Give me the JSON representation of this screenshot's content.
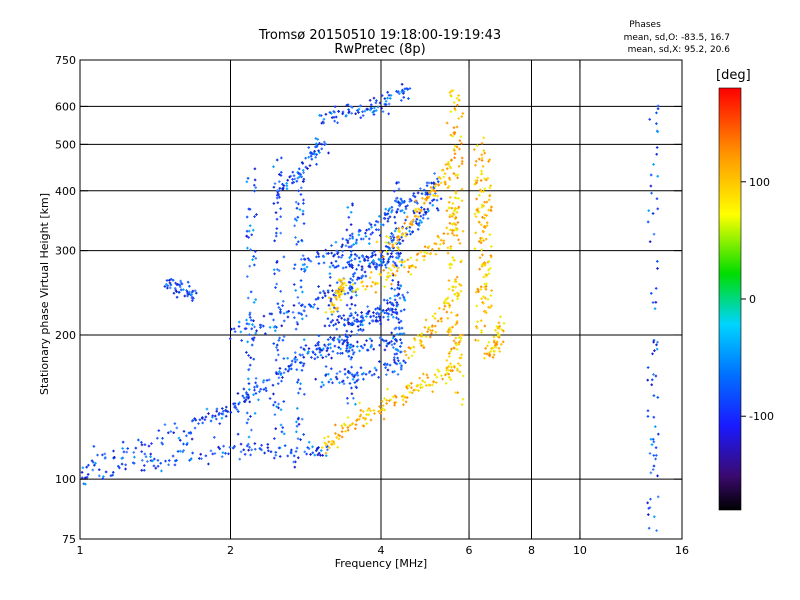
{
  "chart_data": {
    "type": "scatter",
    "title": "Tromsø 20150510 19:18:00-19:19:43",
    "subtitle": "RwPretec (8p)",
    "xlabel": "Frequency [MHz]",
    "ylabel": "Stationary phase Virtual Height [km]",
    "x_scale": "log",
    "y_scale": "log",
    "xlim": [
      1,
      16
    ],
    "ylim": [
      75,
      750
    ],
    "x_ticks": [
      1,
      2,
      4,
      6,
      8,
      10,
      16
    ],
    "x_tick_labels": [
      "1",
      "2",
      "4",
      "6",
      "8",
      "10",
      "16"
    ],
    "x_gridlines": [
      2,
      4,
      6,
      8,
      10
    ],
    "y_ticks": [
      75,
      100,
      200,
      300,
      400,
      500,
      600,
      750
    ],
    "y_tick_labels": [
      "75",
      "100",
      "200",
      "300",
      "400",
      "500",
      "600",
      "750"
    ],
    "y_gridlines": [
      100,
      200,
      300,
      400,
      500,
      600
    ],
    "grid": true,
    "phases_header": "Phases",
    "phase_stats": [
      {
        "label": "mean, sd,O:",
        "value": "-83.5, 16.7"
      },
      {
        "label": "mean, sd,X:",
        "value": " 95.2, 20.6"
      }
    ],
    "colorbar": {
      "unit": "[deg]",
      "range": [
        -180,
        180
      ],
      "ticks": [
        100,
        0,
        -100
      ],
      "tick_labels": [
        "100",
        "0",
        "-100"
      ]
    },
    "series": [
      {
        "name": "O-mode",
        "phase_mean": -83.5,
        "phase_sd": 16.7,
        "traces": [
          [
            [
              1.0,
              108
            ],
            [
              1.2,
              113
            ],
            [
              1.5,
              122
            ],
            [
              1.8,
              133
            ],
            [
              2.0,
              140
            ],
            [
              2.2,
              150
            ],
            [
              2.5,
              165
            ],
            [
              2.8,
              180
            ],
            [
              3.1,
              190
            ],
            [
              3.4,
              200
            ],
            [
              3.8,
              215
            ],
            [
              4.2,
              230
            ],
            [
              4.5,
              245
            ]
          ],
          [
            [
              1.0,
              102
            ],
            [
              1.3,
              106
            ],
            [
              1.6,
              112
            ],
            [
              2.0,
              115
            ],
            [
              2.4,
              115
            ],
            [
              2.8,
              114
            ],
            [
              3.2,
              115
            ]
          ],
          [
            [
              2.0,
              200
            ],
            [
              2.4,
              215
            ],
            [
              2.8,
              230
            ],
            [
              3.2,
              245
            ],
            [
              3.6,
              265
            ],
            [
              4.0,
              290
            ],
            [
              4.4,
              320
            ],
            [
              4.8,
              350
            ],
            [
              5.2,
              380
            ]
          ],
          [
            [
              2.8,
              280
            ],
            [
              3.2,
              300
            ],
            [
              3.6,
              320
            ],
            [
              4.0,
              345
            ],
            [
              4.4,
              370
            ],
            [
              4.8,
              395
            ],
            [
              5.2,
              420
            ]
          ],
          [
            [
              3.0,
              560
            ],
            [
              3.4,
              580
            ],
            [
              3.8,
              600
            ],
            [
              4.2,
              625
            ],
            [
              4.6,
              650
            ]
          ],
          [
            [
              3.1,
              215
            ],
            [
              3.5,
              215
            ],
            [
              3.9,
              220
            ],
            [
              4.3,
              228
            ]
          ],
          [
            [
              3.0,
              160
            ],
            [
              3.5,
              163
            ],
            [
              4.0,
              168
            ],
            [
              4.5,
              175
            ]
          ],
          [
            [
              3.0,
              185
            ],
            [
              3.5,
              188
            ],
            [
              4.0,
              192
            ],
            [
              4.5,
              198
            ]
          ],
          [
            [
              3.2,
              285
            ],
            [
              3.6,
              285
            ],
            [
              4.0,
              286
            ],
            [
              4.4,
              290
            ]
          ],
          [
            [
              2.5,
              390
            ],
            [
              2.7,
              430
            ],
            [
              2.9,
              470
            ],
            [
              3.1,
              510
            ]
          ],
          [
            [
              1.5,
              255
            ],
            [
              1.6,
              250
            ],
            [
              1.7,
              240
            ]
          ]
        ],
        "vertical_traces": [
          {
            "x": 2.2,
            "y_range": [
              115,
              450
            ]
          },
          {
            "x": 2.5,
            "y_range": [
              118,
              470
            ]
          },
          {
            "x": 2.75,
            "y_range": [
              120,
              420
            ]
          },
          {
            "x": 3.5,
            "y_range": [
              140,
              380
            ]
          },
          {
            "x": 4.3,
            "y_range": [
              160,
              420
            ]
          },
          {
            "x": 14.0,
            "y_range": [
              78,
              620
            ]
          }
        ]
      },
      {
        "name": "X-mode",
        "phase_mean": 95.2,
        "phase_sd": 20.6,
        "traces": [
          [
            [
              3.1,
              118
            ],
            [
              3.3,
              125
            ],
            [
              3.6,
              133
            ],
            [
              4.0,
              142
            ],
            [
              4.4,
              150
            ],
            [
              4.8,
              158
            ],
            [
              5.3,
              165
            ],
            [
              5.7,
              170
            ]
          ],
          [
            [
              3.5,
              250
            ],
            [
              4.0,
              265
            ],
            [
              4.5,
              280
            ],
            [
              5.0,
              300
            ],
            [
              5.5,
              330
            ],
            [
              5.7,
              380
            ]
          ],
          [
            [
              4.0,
              300
            ],
            [
              4.4,
              330
            ],
            [
              4.8,
              370
            ],
            [
              5.2,
              410
            ],
            [
              5.6,
              460
            ]
          ],
          [
            [
              4.5,
              180
            ],
            [
              4.9,
              200
            ],
            [
              5.3,
              225
            ],
            [
              5.7,
              250
            ]
          ],
          [
            [
              3.2,
              225
            ],
            [
              3.3,
              245
            ],
            [
              3.35,
              260
            ]
          ],
          [
            [
              6.5,
              180
            ],
            [
              6.8,
              195
            ],
            [
              7.0,
              210
            ]
          ]
        ],
        "vertical_traces": [
          {
            "x": 5.55,
            "y_range": [
              170,
              650
            ]
          },
          {
            "x": 5.7,
            "y_range": [
              140,
              640
            ]
          },
          {
            "x": 6.3,
            "y_range": [
              190,
              520
            ]
          },
          {
            "x": 6.5,
            "y_range": [
              220,
              470
            ]
          }
        ]
      }
    ]
  }
}
